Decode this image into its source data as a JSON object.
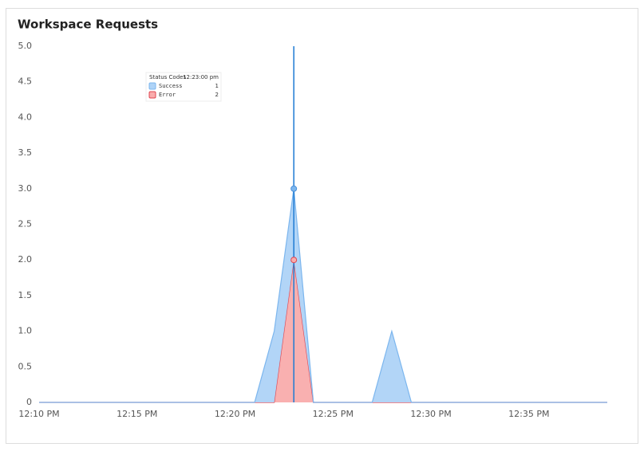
{
  "chart_data": {
    "type": "stacked-area",
    "title": "Workspace Requests",
    "categories": [
      "12:10 PM",
      null,
      null,
      null,
      null,
      "12:15 PM",
      null,
      null,
      null,
      null,
      "12:20 PM",
      null,
      null,
      null,
      null,
      "12:25 PM",
      null,
      null,
      null,
      null,
      "12:30 PM",
      null,
      null,
      null,
      null,
      "12:35 PM",
      null,
      null,
      null,
      null
    ],
    "series": [
      {
        "name": "Success",
        "color": "#7cb6ee",
        "values": [
          0,
          0,
          0,
          0,
          0,
          0,
          0,
          0,
          0,
          0,
          0,
          0,
          1,
          1,
          0,
          0,
          0,
          0,
          1,
          0,
          0,
          0,
          0,
          0,
          0,
          0,
          0,
          0,
          0,
          0
        ]
      },
      {
        "name": "Error",
        "color": "#e0454f",
        "values": [
          0,
          0,
          0,
          0,
          0,
          0,
          0,
          0,
          0,
          0,
          0,
          0,
          0,
          2,
          0,
          0,
          0,
          0,
          0,
          0,
          0,
          0,
          0,
          0,
          0,
          0,
          0,
          0,
          0,
          0
        ]
      }
    ],
    "ylim": [
      0,
      5
    ],
    "yticks": [
      0,
      0.5,
      {
        "value": 1,
        "label": "1.0"
      },
      1.5,
      {
        "value": 2,
        "label": "2.0"
      },
      2.5,
      {
        "value": 3,
        "label": "3.0"
      },
      3.5,
      {
        "value": 4,
        "label": "4.0"
      },
      4.5,
      {
        "value": 5,
        "label": "5.0"
      }
    ],
    "tooltip": {
      "title": "Status Codes",
      "time": "12:23:00 pm"
    }
  }
}
